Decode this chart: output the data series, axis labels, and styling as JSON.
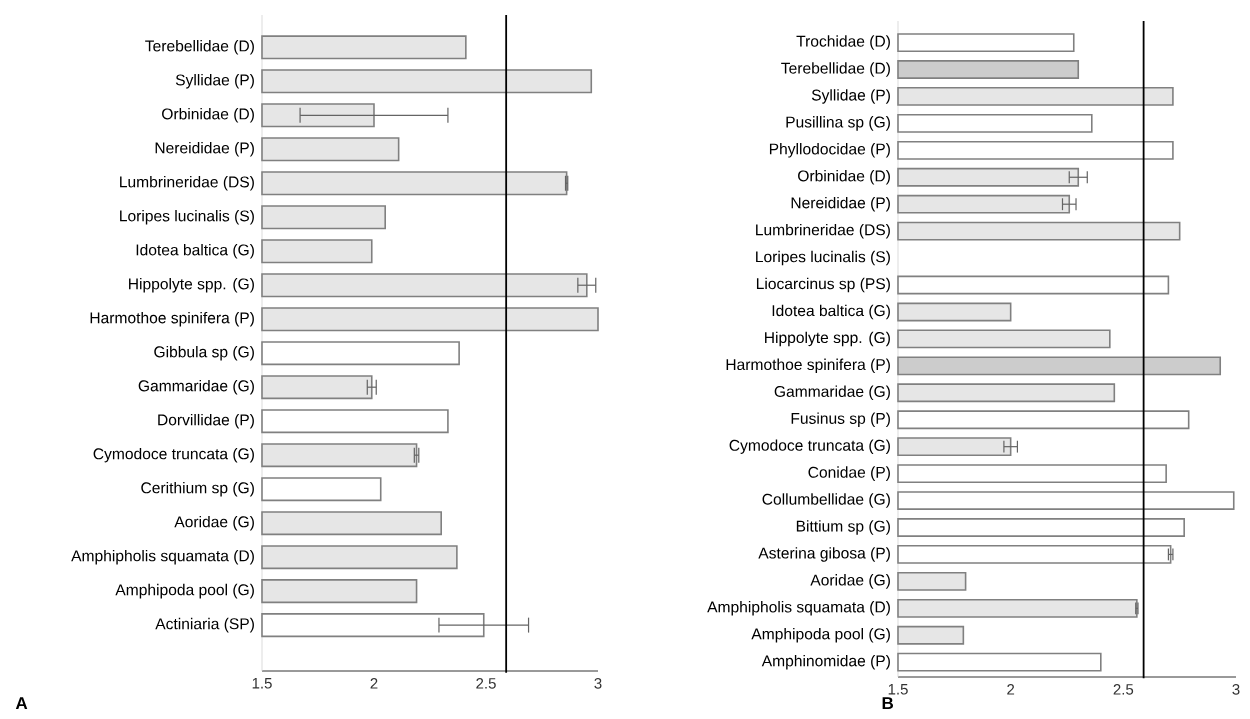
{
  "chart_data": [
    {
      "type": "bar",
      "orientation": "horizontal",
      "categories": [
        "Terebellidae (D)",
        "Syllidae (P)",
        "Orbinidae (D)",
        "Nereididae (P)",
        "Lumbrineridae (DS)",
        "Loripes lucinalis (S)",
        "Idotea baltica (G)",
        "Hippolyte spp. (G)",
        "Harmothoe spinifera (P)",
        "Gibbula sp (G)",
        "Gammaridae (G)",
        "Dorvillidae (P)",
        "Cymodoce truncata (G)",
        "Cerithium sp (G)",
        "Aoridae (G)",
        "Amphipholis squamata (D)",
        "Amphipoda pool (G)",
        "Actiniaria (SP)"
      ],
      "values": [
        2.41,
        2.97,
        2.0,
        2.11,
        2.86,
        2.05,
        1.99,
        2.95,
        3.0,
        2.38,
        1.99,
        2.33,
        2.19,
        2.03,
        2.3,
        2.37,
        2.19,
        2.49
      ],
      "errors": [
        null,
        null,
        0.33,
        null,
        0.005,
        null,
        null,
        0.04,
        null,
        null,
        0.02,
        null,
        0.01,
        null,
        null,
        null,
        null,
        0.2
      ],
      "colors": [
        "#e6e6e6",
        "#e6e6e6",
        "#e6e6e6",
        "#e6e6e6",
        "#e6e6e6",
        "#e6e6e6",
        "#e6e6e6",
        "#e6e6e6",
        "#e6e6e6",
        "#ffffff",
        "#e6e6e6",
        "#ffffff",
        "#e6e6e6",
        "#ffffff",
        "#e6e6e6",
        "#e6e6e6",
        "#e6e6e6",
        "#ffffff"
      ],
      "xlim": [
        1.5,
        3
      ],
      "xticks": [
        1.5,
        2,
        2.5,
        3
      ],
      "ref_lines": [
        {
          "axis": "x",
          "value": 2.59,
          "color": "#000000"
        }
      ],
      "annotations": [
        "A"
      ]
    },
    {
      "type": "bar",
      "orientation": "horizontal",
      "categories": [
        "Trochidae (D)",
        "Terebellidae (D)",
        "Syllidae (P)",
        "Pusillina sp (G)",
        "Phyllodocidae (P)",
        "Orbinidae (D)",
        "Nereididae (P)",
        "Lumbrineridae (DS)",
        "Loripes lucinalis (S)",
        "Liocarcinus sp (PS)",
        "Idotea baltica (G)",
        "Hippolyte spp. (G)",
        "Harmothoe spinifera (P)",
        "Gammaridae (G)",
        "Fusinus sp (P)",
        "Cymodoce truncata (G)",
        "Conidae (P)",
        "Collumbellidae (G)",
        "Bittium sp (G)",
        "Asterina gibosa (P)",
        "Aoridae (G)",
        "Amphipholis squamata (D)",
        "Amphipoda pool (G)",
        "Amphinomidae (P)"
      ],
      "values": [
        2.28,
        2.3,
        2.72,
        2.36,
        2.72,
        2.3,
        2.26,
        2.75,
        null,
        2.7,
        2.0,
        2.44,
        2.93,
        2.46,
        2.79,
        2.0,
        2.69,
        2.99,
        2.77,
        2.71,
        1.8,
        2.56,
        1.79,
        2.4
      ],
      "errors": [
        null,
        null,
        null,
        null,
        null,
        0.04,
        0.03,
        null,
        null,
        null,
        null,
        null,
        null,
        null,
        null,
        0.03,
        null,
        null,
        null,
        0.01,
        null,
        0.005,
        null,
        null
      ],
      "colors": [
        "#ffffff",
        "#cccccc",
        "#e6e6e6",
        "#ffffff",
        "#ffffff",
        "#e6e6e6",
        "#e6e6e6",
        "#e6e6e6",
        "#e6e6e6",
        "#ffffff",
        "#e6e6e6",
        "#e6e6e6",
        "#cccccc",
        "#e6e6e6",
        "#ffffff",
        "#e6e6e6",
        "#ffffff",
        "#ffffff",
        "#ffffff",
        "#ffffff",
        "#e6e6e6",
        "#e6e6e6",
        "#e6e6e6",
        "#ffffff"
      ],
      "xlim": [
        1.5,
        3
      ],
      "xticks": [
        1.5,
        2,
        2.5,
        3
      ],
      "ref_lines": [
        {
          "axis": "x",
          "value": 2.59,
          "color": "#000000"
        }
      ],
      "annotations": [
        "B"
      ]
    }
  ]
}
